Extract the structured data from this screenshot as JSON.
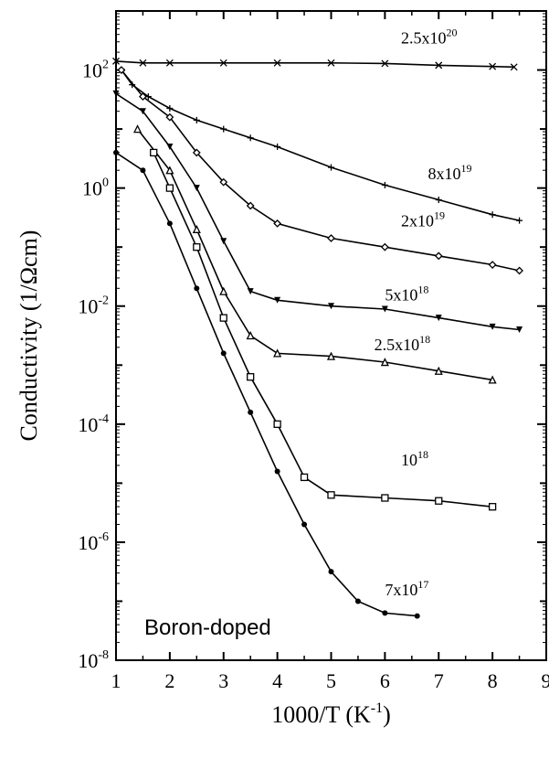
{
  "chart_data": {
    "type": "line",
    "xlabel": "1000/T (K",
    "xlabel_sup": "-1",
    "xlabel_tail": ")",
    "ylabel": "Conductivity (1/Ωcm)",
    "xlim": [
      1,
      9
    ],
    "ylim_log10": [
      -8,
      3
    ],
    "y_scale": "log",
    "x_ticks": [
      1,
      2,
      3,
      4,
      5,
      6,
      7,
      8,
      9
    ],
    "x_tick_labels": [
      "1",
      "2",
      "3",
      "4",
      "5",
      "6",
      "7",
      "8",
      "9"
    ],
    "y_ticks": [
      {
        "exp": 2,
        "base": "10",
        "sup": "2"
      },
      {
        "exp": 0,
        "base": "10",
        "sup": "0"
      },
      {
        "exp": -2,
        "base": "10",
        "sup": "-2"
      },
      {
        "exp": -4,
        "base": "10",
        "sup": "-4"
      },
      {
        "exp": -6,
        "base": "10",
        "sup": "-6"
      },
      {
        "exp": -8,
        "base": "10",
        "sup": "-8"
      }
    ],
    "annotation": "Boron-doped",
    "series": [
      {
        "name": "2.5x10^20",
        "label_base": "2.5x10",
        "label_sup": "20",
        "label_at": [
          6.3,
          2.45
        ],
        "marker": "x",
        "points": [
          [
            1.0,
            2.15
          ],
          [
            1.5,
            2.12
          ],
          [
            2.0,
            2.12
          ],
          [
            3.0,
            2.12
          ],
          [
            4.0,
            2.12
          ],
          [
            5.0,
            2.12
          ],
          [
            6.0,
            2.11
          ],
          [
            7.0,
            2.08
          ],
          [
            8.0,
            2.06
          ],
          [
            8.4,
            2.05
          ]
        ]
      },
      {
        "name": "8x10^19",
        "label_base": "8x10",
        "label_sup": "19",
        "label_at": [
          6.8,
          0.15
        ],
        "marker": "plus",
        "points": [
          [
            1.1,
            2.0
          ],
          [
            1.3,
            1.75
          ],
          [
            1.6,
            1.55
          ],
          [
            2.0,
            1.35
          ],
          [
            2.5,
            1.15
          ],
          [
            3.0,
            1.0
          ],
          [
            3.5,
            0.85
          ],
          [
            4.0,
            0.7
          ],
          [
            5.0,
            0.35
          ],
          [
            6.0,
            0.05
          ],
          [
            7.0,
            -0.2
          ],
          [
            8.0,
            -0.45
          ],
          [
            8.5,
            -0.55
          ]
        ]
      },
      {
        "name": "2x10^19",
        "label_base": "2x10",
        "label_sup": "19",
        "label_at": [
          6.3,
          -0.65
        ],
        "marker": "diamond",
        "points": [
          [
            1.1,
            2.0
          ],
          [
            1.5,
            1.55
          ],
          [
            2.0,
            1.2
          ],
          [
            2.5,
            0.6
          ],
          [
            3.0,
            0.1
          ],
          [
            3.5,
            -0.3
          ],
          [
            4.0,
            -0.6
          ],
          [
            5.0,
            -0.85
          ],
          [
            6.0,
            -1.0
          ],
          [
            7.0,
            -1.15
          ],
          [
            8.0,
            -1.3
          ],
          [
            8.5,
            -1.4
          ]
        ]
      },
      {
        "name": "5x10^18",
        "label_base": "5x10",
        "label_sup": "18",
        "label_at": [
          6.0,
          -1.9
        ],
        "marker": "triangle-down",
        "points": [
          [
            1.0,
            1.6
          ],
          [
            1.5,
            1.3
          ],
          [
            2.0,
            0.7
          ],
          [
            2.5,
            0.0
          ],
          [
            3.0,
            -0.9
          ],
          [
            3.5,
            -1.75
          ],
          [
            4.0,
            -1.9
          ],
          [
            5.0,
            -2.0
          ],
          [
            6.0,
            -2.05
          ],
          [
            7.0,
            -2.2
          ],
          [
            8.0,
            -2.35
          ],
          [
            8.5,
            -2.4
          ]
        ]
      },
      {
        "name": "2.5x10^18",
        "label_base": "2.5x10",
        "label_sup": "18",
        "label_at": [
          5.8,
          -2.75
        ],
        "marker": "triangle-up",
        "points": [
          [
            1.4,
            1.0
          ],
          [
            2.0,
            0.3
          ],
          [
            2.5,
            -0.7
          ],
          [
            3.0,
            -1.75
          ],
          [
            3.5,
            -2.5
          ],
          [
            4.0,
            -2.8
          ],
          [
            5.0,
            -2.85
          ],
          [
            6.0,
            -2.95
          ],
          [
            7.0,
            -3.1
          ],
          [
            8.0,
            -3.25
          ]
        ]
      },
      {
        "name": "10^18",
        "label_base": "10",
        "label_sup": "18",
        "label_at": [
          6.3,
          -4.7
        ],
        "marker": "square",
        "points": [
          [
            1.7,
            0.6
          ],
          [
            2.0,
            0.0
          ],
          [
            2.5,
            -1.0
          ],
          [
            3.0,
            -2.2
          ],
          [
            3.5,
            -3.2
          ],
          [
            4.0,
            -4.0
          ],
          [
            4.5,
            -4.9
          ],
          [
            5.0,
            -5.2
          ],
          [
            6.0,
            -5.25
          ],
          [
            7.0,
            -5.3
          ],
          [
            8.0,
            -5.4
          ]
        ]
      },
      {
        "name": "7x10^17",
        "label_base": "7x10",
        "label_sup": "17",
        "label_at": [
          6.0,
          -6.9
        ],
        "marker": "circle",
        "points": [
          [
            1.0,
            0.6
          ],
          [
            1.5,
            0.3
          ],
          [
            2.0,
            -0.6
          ],
          [
            2.5,
            -1.7
          ],
          [
            3.0,
            -2.8
          ],
          [
            3.5,
            -3.8
          ],
          [
            4.0,
            -4.8
          ],
          [
            4.5,
            -5.7
          ],
          [
            5.0,
            -6.5
          ],
          [
            5.5,
            -7.0
          ],
          [
            6.0,
            -7.2
          ],
          [
            6.6,
            -7.25
          ]
        ]
      }
    ]
  }
}
